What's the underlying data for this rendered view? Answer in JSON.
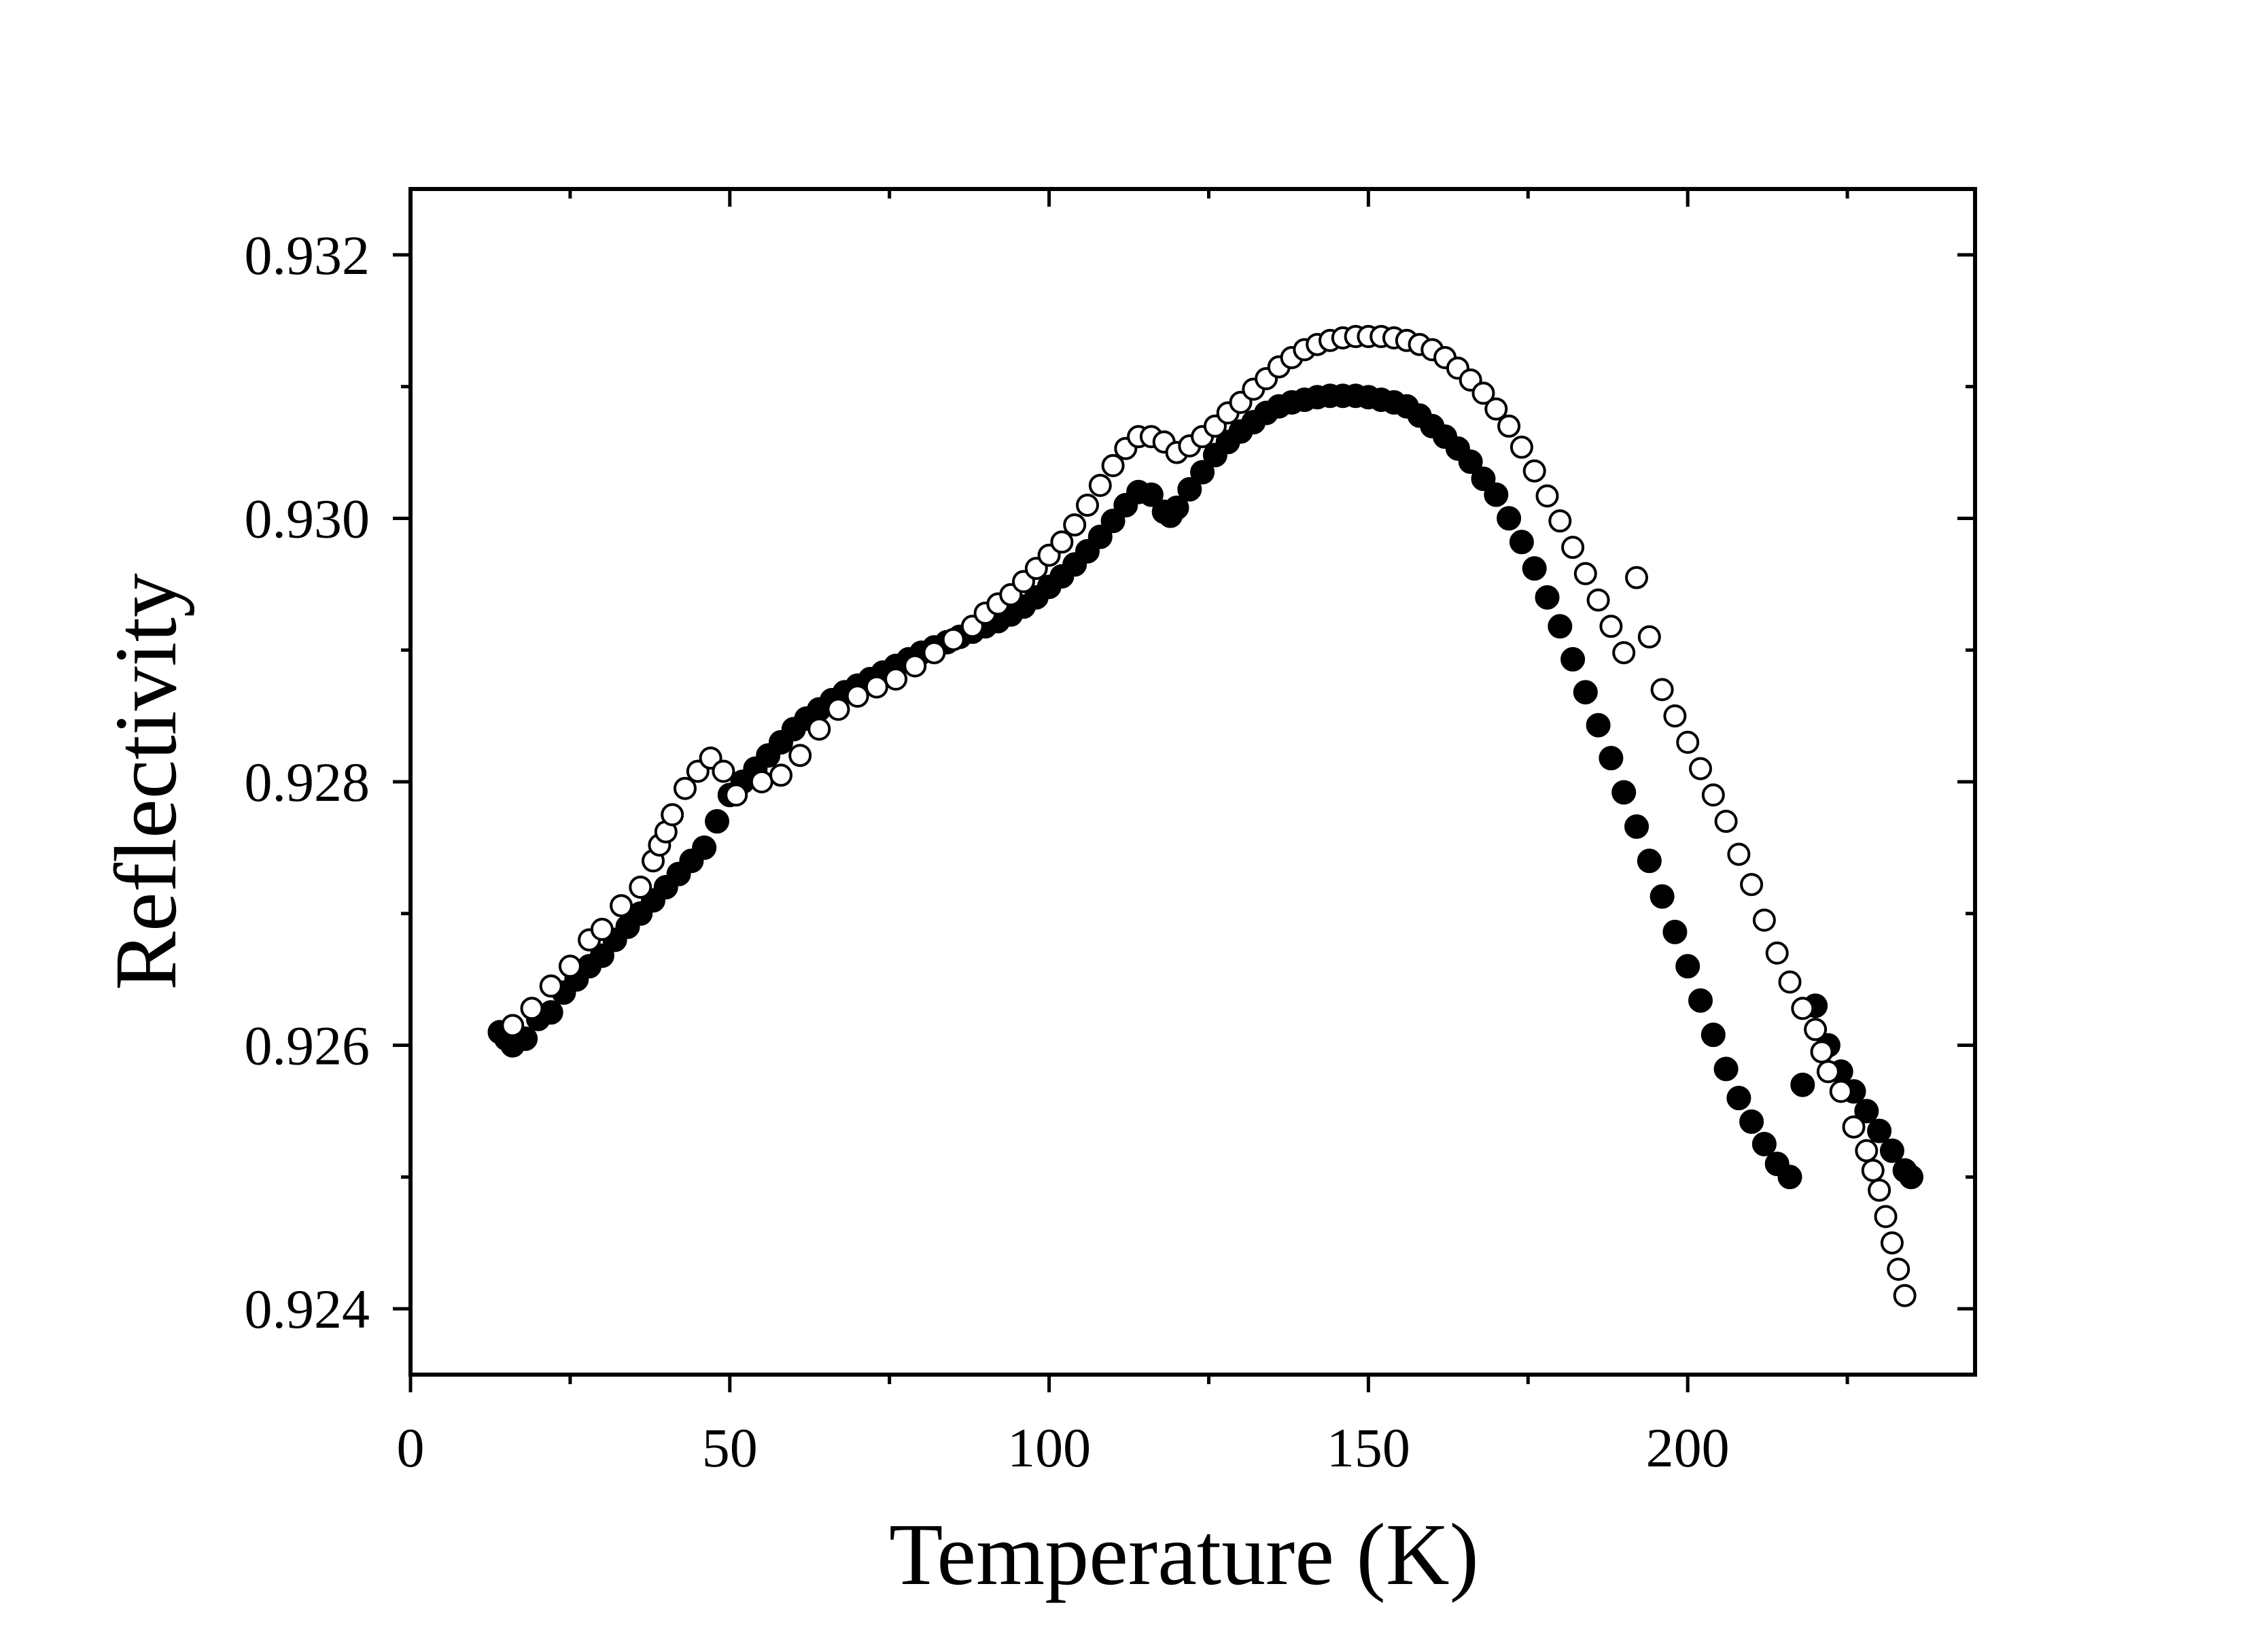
{
  "chart_data": {
    "type": "scatter",
    "title": "",
    "xlabel": "Temperature (K)",
    "ylabel": "Reflectivity",
    "xlim": [
      0,
      245
    ],
    "ylim": [
      0.9235,
      0.9325
    ],
    "xticks": [
      0,
      50,
      100,
      150,
      200
    ],
    "xtick_labels": [
      "0",
      "50",
      "100",
      "150",
      "200"
    ],
    "yticks": [
      0.924,
      0.926,
      0.928,
      0.93,
      0.932
    ],
    "ytick_labels": [
      "0.924",
      "0.926",
      "0.928",
      "0.930",
      "0.932"
    ],
    "grid": false,
    "legend": "none",
    "series": [
      {
        "name": "filled",
        "marker": "filled-circle",
        "color": "#000000",
        "points": [
          [
            14,
            0.9261
          ],
          [
            15,
            0.92605
          ],
          [
            16,
            0.926
          ],
          [
            18,
            0.92605
          ],
          [
            20,
            0.9262
          ],
          [
            22,
            0.92625
          ],
          [
            24,
            0.9264
          ],
          [
            26,
            0.9265
          ],
          [
            28,
            0.9266
          ],
          [
            30,
            0.92668
          ],
          [
            32,
            0.9268
          ],
          [
            34,
            0.9269
          ],
          [
            36,
            0.927
          ],
          [
            38,
            0.9271
          ],
          [
            40,
            0.9272
          ],
          [
            42,
            0.9273
          ],
          [
            44,
            0.9274
          ],
          [
            46,
            0.9275
          ],
          [
            48,
            0.9277
          ],
          [
            50,
            0.9279
          ],
          [
            52,
            0.928
          ],
          [
            54,
            0.9281
          ],
          [
            56,
            0.9282
          ],
          [
            58,
            0.9283
          ],
          [
            60,
            0.9284
          ],
          [
            62,
            0.92848
          ],
          [
            64,
            0.92855
          ],
          [
            66,
            0.92862
          ],
          [
            68,
            0.92868
          ],
          [
            70,
            0.92873
          ],
          [
            72,
            0.92878
          ],
          [
            74,
            0.92883
          ],
          [
            76,
            0.92888
          ],
          [
            78,
            0.92893
          ],
          [
            80,
            0.92898
          ],
          [
            82,
            0.92902
          ],
          [
            84,
            0.92906
          ],
          [
            86,
            0.9291
          ],
          [
            88,
            0.92914
          ],
          [
            90,
            0.92918
          ],
          [
            92,
            0.92922
          ],
          [
            94,
            0.92927
          ],
          [
            96,
            0.92933
          ],
          [
            98,
            0.9294
          ],
          [
            100,
            0.92948
          ],
          [
            102,
            0.92956
          ],
          [
            104,
            0.92965
          ],
          [
            106,
            0.92975
          ],
          [
            108,
            0.92986
          ],
          [
            110,
            0.92998
          ],
          [
            112,
            0.9301
          ],
          [
            114,
            0.9302
          ],
          [
            116,
            0.93018
          ],
          [
            118,
            0.93005
          ],
          [
            119,
            0.93002
          ],
          [
            120,
            0.93008
          ],
          [
            122,
            0.93022
          ],
          [
            124,
            0.93035
          ],
          [
            126,
            0.93048
          ],
          [
            128,
            0.93058
          ],
          [
            130,
            0.93066
          ],
          [
            132,
            0.93073
          ],
          [
            134,
            0.9308
          ],
          [
            136,
            0.93085
          ],
          [
            138,
            0.93088
          ],
          [
            140,
            0.9309
          ],
          [
            142,
            0.93092
          ],
          [
            144,
            0.93093
          ],
          [
            146,
            0.93093
          ],
          [
            148,
            0.93093
          ],
          [
            150,
            0.93092
          ],
          [
            152,
            0.9309
          ],
          [
            154,
            0.93088
          ],
          [
            156,
            0.93085
          ],
          [
            158,
            0.93078
          ],
          [
            160,
            0.9307
          ],
          [
            162,
            0.93062
          ],
          [
            164,
            0.93053
          ],
          [
            166,
            0.93043
          ],
          [
            168,
            0.9303
          ],
          [
            170,
            0.93018
          ],
          [
            172,
            0.93
          ],
          [
            174,
            0.92982
          ],
          [
            176,
            0.92962
          ],
          [
            178,
            0.9294
          ],
          [
            180,
            0.92918
          ],
          [
            182,
            0.92893
          ],
          [
            184,
            0.92868
          ],
          [
            186,
            0.92843
          ],
          [
            188,
            0.92818
          ],
          [
            190,
            0.92792
          ],
          [
            192,
            0.92766
          ],
          [
            194,
            0.9274
          ],
          [
            196,
            0.92713
          ],
          [
            198,
            0.92686
          ],
          [
            200,
            0.9266
          ],
          [
            202,
            0.92634
          ],
          [
            204,
            0.92608
          ],
          [
            206,
            0.92582
          ],
          [
            208,
            0.9256
          ],
          [
            210,
            0.92542
          ],
          [
            212,
            0.92525
          ],
          [
            214,
            0.9251
          ],
          [
            216,
            0.925
          ],
          [
            218,
            0.9257
          ],
          [
            220,
            0.9263
          ],
          [
            222,
            0.926
          ],
          [
            224,
            0.9258
          ],
          [
            226,
            0.92565
          ],
          [
            228,
            0.9255
          ],
          [
            230,
            0.92535
          ],
          [
            232,
            0.9252
          ],
          [
            234,
            0.92505
          ],
          [
            235,
            0.925
          ]
        ]
      },
      {
        "name": "open",
        "marker": "open-circle",
        "color": "#000000",
        "points": [
          [
            16,
            0.92615
          ],
          [
            19,
            0.92628
          ],
          [
            22,
            0.92645
          ],
          [
            25,
            0.9266
          ],
          [
            28,
            0.9268
          ],
          [
            30,
            0.92688
          ],
          [
            33,
            0.92706
          ],
          [
            36,
            0.9272
          ],
          [
            38,
            0.9274
          ],
          [
            39,
            0.92752
          ],
          [
            40,
            0.92762
          ],
          [
            41,
            0.92775
          ],
          [
            43,
            0.92795
          ],
          [
            45,
            0.92808
          ],
          [
            47,
            0.92818
          ],
          [
            49,
            0.92808
          ],
          [
            51,
            0.9279
          ],
          [
            55,
            0.928
          ],
          [
            58,
            0.92805
          ],
          [
            61,
            0.9282
          ],
          [
            64,
            0.9284
          ],
          [
            67,
            0.92855
          ],
          [
            70,
            0.92865
          ],
          [
            73,
            0.92872
          ],
          [
            76,
            0.92878
          ],
          [
            79,
            0.92888
          ],
          [
            82,
            0.92898
          ],
          [
            85,
            0.92908
          ],
          [
            88,
            0.92918
          ],
          [
            90,
            0.92928
          ],
          [
            92,
            0.92935
          ],
          [
            94,
            0.92942
          ],
          [
            96,
            0.92952
          ],
          [
            98,
            0.92962
          ],
          [
            100,
            0.92972
          ],
          [
            102,
            0.92982
          ],
          [
            104,
            0.92995
          ],
          [
            106,
            0.9301
          ],
          [
            108,
            0.93025
          ],
          [
            110,
            0.9304
          ],
          [
            112,
            0.93053
          ],
          [
            114,
            0.93062
          ],
          [
            116,
            0.93062
          ],
          [
            118,
            0.93058
          ],
          [
            120,
            0.9305
          ],
          [
            122,
            0.93055
          ],
          [
            124,
            0.93062
          ],
          [
            126,
            0.9307
          ],
          [
            128,
            0.9308
          ],
          [
            130,
            0.93088
          ],
          [
            132,
            0.93098
          ],
          [
            134,
            0.93106
          ],
          [
            136,
            0.93115
          ],
          [
            138,
            0.93122
          ],
          [
            140,
            0.93128
          ],
          [
            142,
            0.93132
          ],
          [
            144,
            0.93135
          ],
          [
            146,
            0.93137
          ],
          [
            148,
            0.93138
          ],
          [
            150,
            0.93138
          ],
          [
            152,
            0.93138
          ],
          [
            154,
            0.93137
          ],
          [
            156,
            0.93135
          ],
          [
            158,
            0.93132
          ],
          [
            160,
            0.93128
          ],
          [
            162,
            0.93122
          ],
          [
            164,
            0.93114
          ],
          [
            166,
            0.93105
          ],
          [
            168,
            0.93095
          ],
          [
            170,
            0.93083
          ],
          [
            172,
            0.9307
          ],
          [
            174,
            0.93054
          ],
          [
            176,
            0.93036
          ],
          [
            178,
            0.93017
          ],
          [
            180,
            0.92998
          ],
          [
            182,
            0.92978
          ],
          [
            184,
            0.92958
          ],
          [
            186,
            0.92938
          ],
          [
            188,
            0.92918
          ],
          [
            190,
            0.92898
          ],
          [
            192,
            0.92955
          ],
          [
            194,
            0.9291
          ],
          [
            196,
            0.9287
          ],
          [
            198,
            0.9285
          ],
          [
            200,
            0.9283
          ],
          [
            202,
            0.9281
          ],
          [
            204,
            0.9279
          ],
          [
            206,
            0.9277
          ],
          [
            208,
            0.92745
          ],
          [
            210,
            0.92722
          ],
          [
            212,
            0.92695
          ],
          [
            214,
            0.9267
          ],
          [
            216,
            0.92648
          ],
          [
            218,
            0.92628
          ],
          [
            220,
            0.92612
          ],
          [
            221,
            0.92595
          ],
          [
            222,
            0.9258
          ],
          [
            224,
            0.92565
          ],
          [
            226,
            0.92538
          ],
          [
            228,
            0.9252
          ],
          [
            229,
            0.92505
          ],
          [
            230,
            0.9249
          ],
          [
            231,
            0.9247
          ],
          [
            232,
            0.9245
          ],
          [
            233,
            0.9243
          ],
          [
            234,
            0.9241
          ]
        ]
      }
    ]
  }
}
